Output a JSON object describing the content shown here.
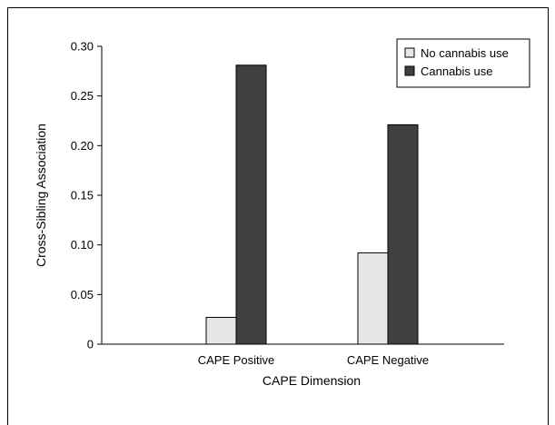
{
  "chart_data": {
    "type": "bar",
    "title": "",
    "xlabel": "CAPE Dimension",
    "ylabel": "Cross-Sibling Association",
    "categories": [
      "CAPE Positive",
      "CAPE Negative"
    ],
    "series": [
      {
        "name": "No cannabis use",
        "values": [
          0.027,
          0.092
        ],
        "color": "#e6e6e6"
      },
      {
        "name": "Cannabis use",
        "values": [
          0.281,
          0.221
        ],
        "color": "#404040"
      }
    ],
    "yticks": [
      "0",
      "0.05",
      "0.10",
      "0.15",
      "0.20",
      "0.25",
      "0.30"
    ],
    "ytick_values": [
      0,
      0.05,
      0.1,
      0.15,
      0.2,
      0.25,
      0.3
    ],
    "ylim": [
      0,
      0.3
    ],
    "grid": false,
    "legend_position": "top-right"
  }
}
